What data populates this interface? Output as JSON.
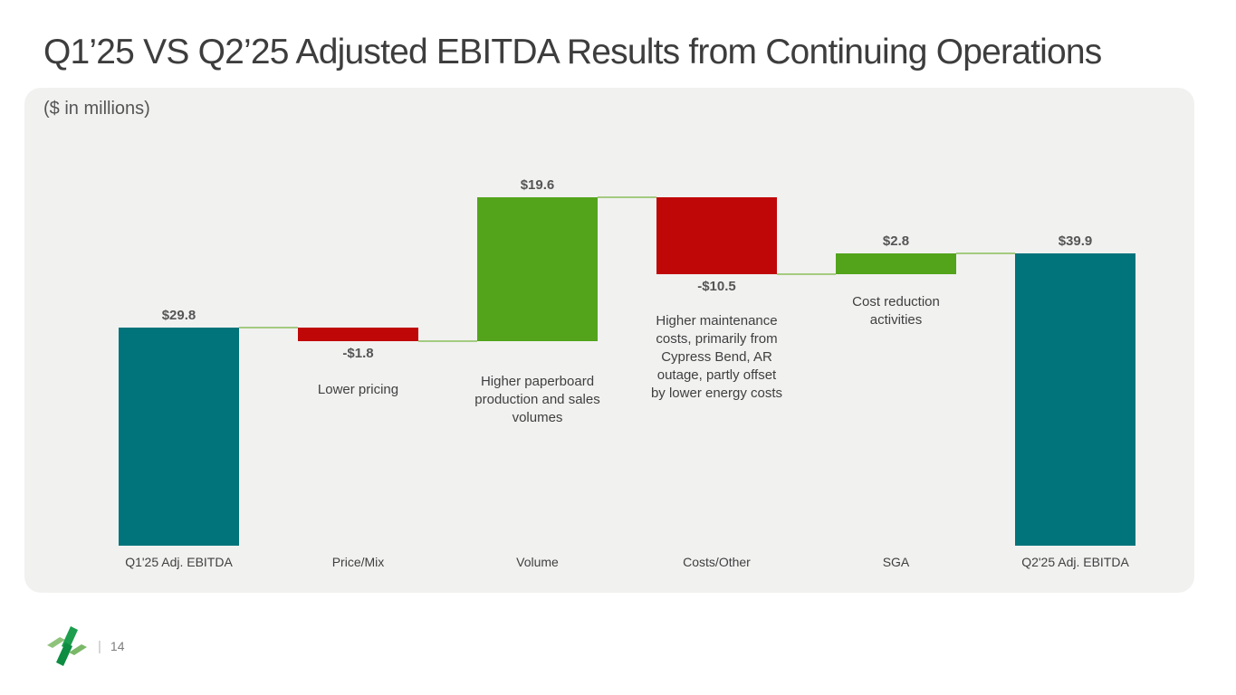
{
  "slide": {
    "title": "Q1’25 VS Q2’25 Adjusted EBITDA Results from Continuing Operations",
    "units_note": "($ in millions)",
    "page_separator": "|",
    "page_number": "14",
    "logo": "clearwater-paper-pinwheel-logo"
  },
  "chart_data": {
    "type": "bar",
    "subtype": "waterfall",
    "title": "Q1'25 VS Q2'25 Adjusted EBITDA Results from Continuing Operations",
    "units": "$ in millions",
    "grid": false,
    "legend": false,
    "ylim": [
      0,
      47.6
    ],
    "categories": [
      "Q1'25 Adj. EBITDA",
      "Price/Mix",
      "Volume",
      "Costs/Other",
      "SGA",
      "Q2'25 Adj. EBITDA"
    ],
    "bars": [
      {
        "category": "Q1'25 Adj. EBITDA",
        "value": 29.8,
        "label": "$29.8",
        "kind": "total",
        "annotation": ""
      },
      {
        "category": "Price/Mix",
        "value": -1.8,
        "label": "-$1.8",
        "kind": "decrease",
        "annotation": "Lower pricing"
      },
      {
        "category": "Volume",
        "value": 19.6,
        "label": "$19.6",
        "kind": "increase",
        "annotation": "Higher paperboard production and sales volumes"
      },
      {
        "category": "Costs/Other",
        "value": -10.5,
        "label": "-$10.5",
        "kind": "decrease",
        "annotation": "Higher maintenance costs, primarily from Cypress Bend, AR outage, partly offset by lower energy costs"
      },
      {
        "category": "SGA",
        "value": 2.8,
        "label": "$2.8",
        "kind": "increase",
        "annotation": "Cost reduction activities"
      },
      {
        "category": "Q2'25 Adj. EBITDA",
        "value": 39.9,
        "label": "$39.9",
        "kind": "total",
        "annotation": ""
      }
    ],
    "cumulative_levels": [
      29.8,
      28.0,
      47.6,
      37.1,
      39.9,
      39.9
    ],
    "colors": {
      "total": "#00747A",
      "increase": "#53A41B",
      "decrease": "#C00707",
      "connector": "#A4CB80"
    }
  }
}
